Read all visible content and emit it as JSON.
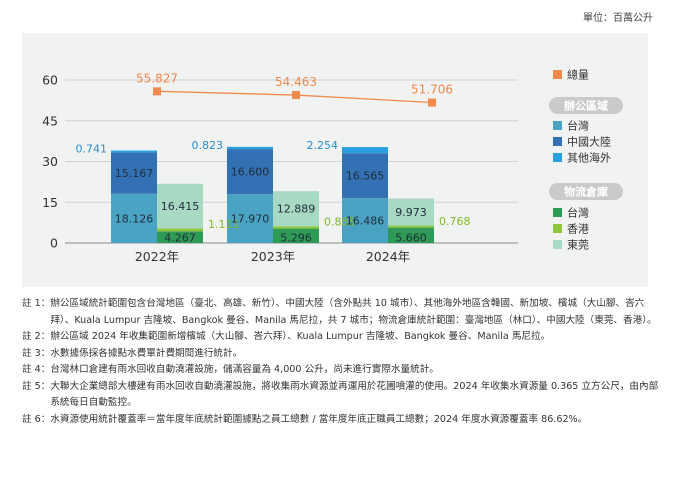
{
  "unit_label": "單位：百萬公升",
  "chart_data": {
    "type": "bar",
    "subtype": "grouped-stacked-bar-with-line",
    "categories": [
      "2022年",
      "2023年",
      "2024年"
    ],
    "ylim": [
      0,
      60
    ],
    "yticks": [
      0,
      15,
      30,
      45,
      60
    ],
    "grid": true,
    "legend_position": "right",
    "groups": [
      {
        "name": "辦公區域",
        "series": [
          {
            "name": "台灣",
            "color": "#4ba3c3",
            "values": [
              18.126,
              17.97,
              16.486
            ]
          },
          {
            "name": "中國大陸",
            "color": "#3470b4",
            "values": [
              15.167,
              16.6,
              16.565
            ]
          },
          {
            "name": "其他海外",
            "color": "#2a9fe0",
            "values": [
              0.741,
              0.823,
              2.254
            ]
          }
        ]
      },
      {
        "name": "物流倉庫",
        "series": [
          {
            "name": "台灣",
            "color": "#2e9a55",
            "values": [
              4.267,
              5.296,
              5.66
            ]
          },
          {
            "name": "香港",
            "color": "#8dc63f",
            "values": [
              1.111,
              0.885,
              0.768
            ]
          },
          {
            "name": "東莞",
            "color": "#a8d9c3",
            "values": [
              16.415,
              12.889,
              9.973
            ]
          }
        ]
      }
    ],
    "line": {
      "name": "總量",
      "color": "#f08a4b",
      "values": [
        55.827,
        54.463,
        51.706
      ]
    },
    "value_labels": {
      "total": [
        "55.827",
        "54.463",
        "51.706"
      ],
      "office_taiwan": [
        "18.126",
        "17.970",
        "16.486"
      ],
      "office_china": [
        "15.167",
        "16.600",
        "16.565"
      ],
      "office_overseas": [
        "0.741",
        "0.823",
        "2.254"
      ],
      "wh_taiwan": [
        "4.267",
        "5.296",
        "5.660"
      ],
      "wh_hk": [
        "1.111",
        "0.885",
        "0.768"
      ],
      "wh_dongguan": [
        "16.415",
        "12.889",
        "9.973"
      ]
    }
  },
  "notes": [
    {
      "label": "註 1：",
      "text": "辦公區域統計範圍包含台灣地區（臺北、高雄、新竹）、中國大陸（含外點共 10 城市）、其他海外地區含韓國、新加坡、檳城（大山腳、峇六拜）、Kuala Lumpur 吉隆坡、Bangkok 曼谷、Manila 馬尼拉，共 7 城市；物流倉庫統計範圍：臺灣地區（林口）、中國大陸（東莞、香港）。"
    },
    {
      "label": "註 2：",
      "text": "辦公區域 2024 年收集範圍新增檳城（大山腳、峇六拜）、Kuala Lumpur 吉隆坡、Bangkok 曼谷、Manila 馬尼拉。"
    },
    {
      "label": "註 3：",
      "text": "水數據係採各據點水費單計費期間進行統計。"
    },
    {
      "label": "註 4：",
      "text": "台灣林口倉建有雨水回收自動澆灌設施，儲滿容量為 4,000 公升，尚未進行實際水量統計。"
    },
    {
      "label": "註 5：",
      "text": "大聯大企業總部大樓建有雨水回收自動澆灌設施，將收集雨水資源並再運用於花圃噴灌的使用。2024 年收集水資源量 0.365 立方公尺，由內部系統每日自動監控。"
    },
    {
      "label": "註 6：",
      "text": "水資源使用統計覆蓋率＝當年度年底統計範圍據點之員工總數 / 當年度年底正職員工總數；2024 年度水資源覆蓋率 86.62%。"
    }
  ]
}
